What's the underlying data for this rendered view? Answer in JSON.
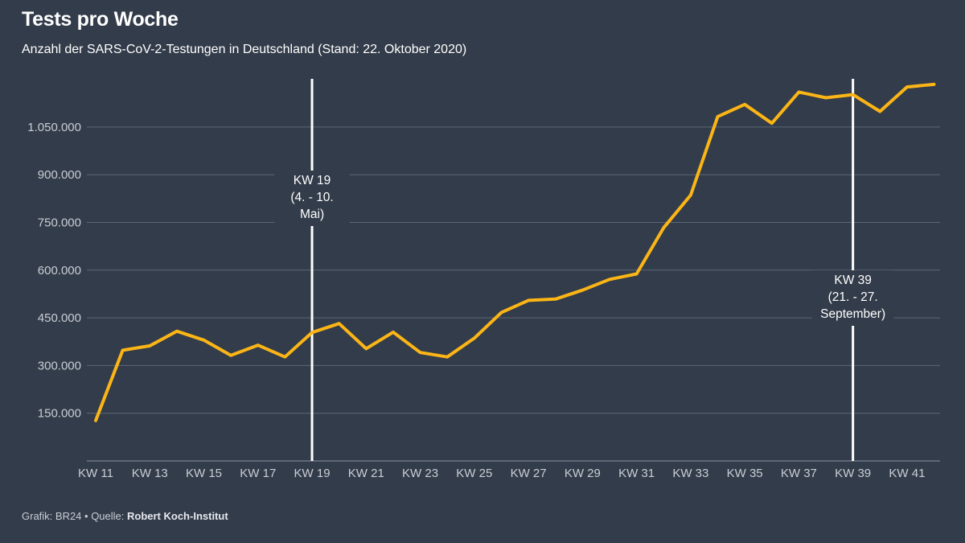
{
  "header": {
    "title": "Tests pro Woche",
    "subtitle": "Anzahl der SARS-CoV-2-Testungen in Deutschland (Stand: 22. Oktober 2020)"
  },
  "footer": {
    "prefix": "Grafik: BR24 • Quelle: ",
    "source": "Robert Koch-Institut"
  },
  "colors": {
    "background": "#333c4a",
    "line": "#fbb516",
    "grid": "#5d6675",
    "marker": "#ffffff"
  },
  "chart_data": {
    "type": "line",
    "title": "Tests pro Woche",
    "subtitle": "Anzahl der SARS-CoV-2-Testungen in Deutschland (Stand: 22. Oktober 2020)",
    "xlabel": "",
    "ylabel": "",
    "ylim": [
      0,
      1200000
    ],
    "grid": true,
    "legend": "none",
    "y_ticks": [
      150000,
      300000,
      450000,
      600000,
      750000,
      900000,
      1050000
    ],
    "y_tick_labels": [
      "150.000",
      "300.000",
      "450.000",
      "600.000",
      "750.000",
      "900.000",
      "1.050.000"
    ],
    "x_tick_labels": [
      "KW 11",
      "KW 13",
      "KW 15",
      "KW 17",
      "KW 19",
      "KW 21",
      "KW 23",
      "KW 25",
      "KW 27",
      "KW 29",
      "KW 31",
      "KW 33",
      "KW 35",
      "KW 37",
      "KW 39",
      "KW 41"
    ],
    "x": [
      11,
      12,
      13,
      14,
      15,
      16,
      17,
      18,
      19,
      20,
      21,
      22,
      23,
      24,
      25,
      26,
      27,
      28,
      29,
      30,
      31,
      32,
      33,
      34,
      35,
      36,
      37,
      38,
      39,
      40,
      41,
      42
    ],
    "x_labels": [
      "KW 11",
      "KW 12",
      "KW 13",
      "KW 14",
      "KW 15",
      "KW 16",
      "KW 17",
      "KW 18",
      "KW 19",
      "KW 20",
      "KW 21",
      "KW 22",
      "KW 23",
      "KW 24",
      "KW 25",
      "KW 26",
      "KW 27",
      "KW 28",
      "KW 29",
      "KW 30",
      "KW 31",
      "KW 32",
      "KW 33",
      "KW 34",
      "KW 35",
      "KW 36",
      "KW 37",
      "KW 38",
      "KW 39",
      "KW 40",
      "KW 41",
      "KW 42"
    ],
    "series": [
      {
        "values": [
          127000,
          348000,
          362000,
          408000,
          380000,
          332000,
          364000,
          327000,
          404000,
          432000,
          353000,
          405000,
          341000,
          327000,
          386000,
          467000,
          505000,
          509000,
          537000,
          571000,
          588000,
          733000,
          836000,
          1083000,
          1121000,
          1062000,
          1160000,
          1142000,
          1152000,
          1099000,
          1176000,
          1184000
        ]
      }
    ],
    "annotations": [
      {
        "x": 19,
        "lines": [
          "KW 19",
          "(4. - 10.",
          "Mai)"
        ]
      },
      {
        "x": 39,
        "lines": [
          "KW 39",
          "(21. - 27.",
          "September)"
        ]
      }
    ]
  }
}
